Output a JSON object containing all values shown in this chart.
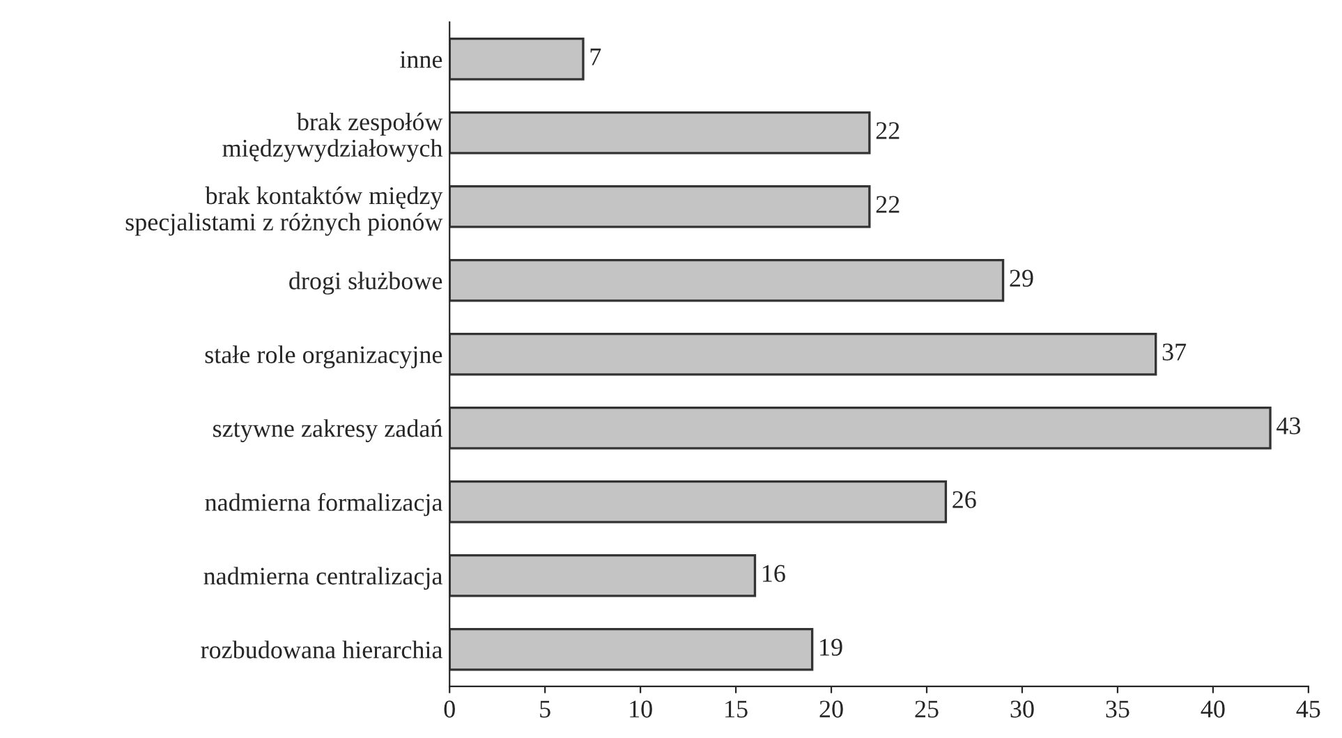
{
  "chart_data": {
    "type": "bar",
    "orientation": "horizontal",
    "categories": [
      "inne",
      "brak zespołów\nmiędzywydziałowych",
      "brak kontaktów między\nspecjalistami z różnych pionów",
      "drogi służbowe",
      "stałe role organizacyjne",
      "sztywne zakresy zadań",
      "nadmierna formalizacja",
      "nadmierna centralizacja",
      "rozbudowana hierarchia"
    ],
    "values": [
      7,
      22,
      22,
      29,
      37,
      43,
      26,
      16,
      19
    ],
    "color": "#c4c4c4",
    "xlim": [
      0,
      45
    ],
    "xticks": [
      0,
      5,
      10,
      15,
      20,
      25,
      30,
      35,
      40,
      45
    ],
    "data_labels": true,
    "grid": false,
    "legend": false
  }
}
